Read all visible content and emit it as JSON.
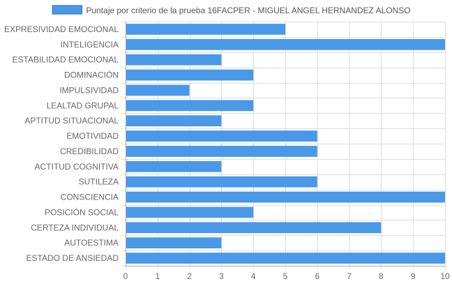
{
  "chart_data": {
    "type": "bar",
    "orientation": "horizontal",
    "categories": [
      "EXPRESIVIDAD EMOCIONAL",
      "INTELIGENCIA",
      "ESTABILIDAD EMOCIONAL",
      "DOMINACIÓN",
      "IMPULSIVIDAD",
      "LEALTAD GRUPAL",
      "APTITUD SITUACIONAL",
      "EMOTIVIDAD",
      "CREDIBILIDAD",
      "ACTITUD COGNITIVA",
      "SUTILEZA",
      "CONSCIENCIA",
      "POSICIÓN SOCIAL",
      "CERTEZA INDIVIDUAL",
      "AUTOESTIMA",
      "ESTADO DE ANSIEDAD"
    ],
    "series": [
      {
        "name": "Puntaje por criterio de la prueba 16FACPER - MIGUEL ANGEL HERNANDEZ ALONSO",
        "values": [
          5,
          10,
          3,
          4,
          2,
          4,
          3,
          6,
          6,
          3,
          6,
          10,
          4,
          8,
          3,
          10
        ],
        "color": "#4a98e8",
        "border_color": "#3d85d8"
      }
    ],
    "xlim": [
      0,
      10
    ],
    "x_ticks": [
      "0",
      "1",
      "2",
      "3",
      "4",
      "5",
      "6",
      "7",
      "8",
      "9",
      "10"
    ],
    "grid": true,
    "legend_position": "top-center",
    "colors": {
      "grid": "#dddddd",
      "axis": "#aaaaaa",
      "text": "#666666"
    }
  }
}
